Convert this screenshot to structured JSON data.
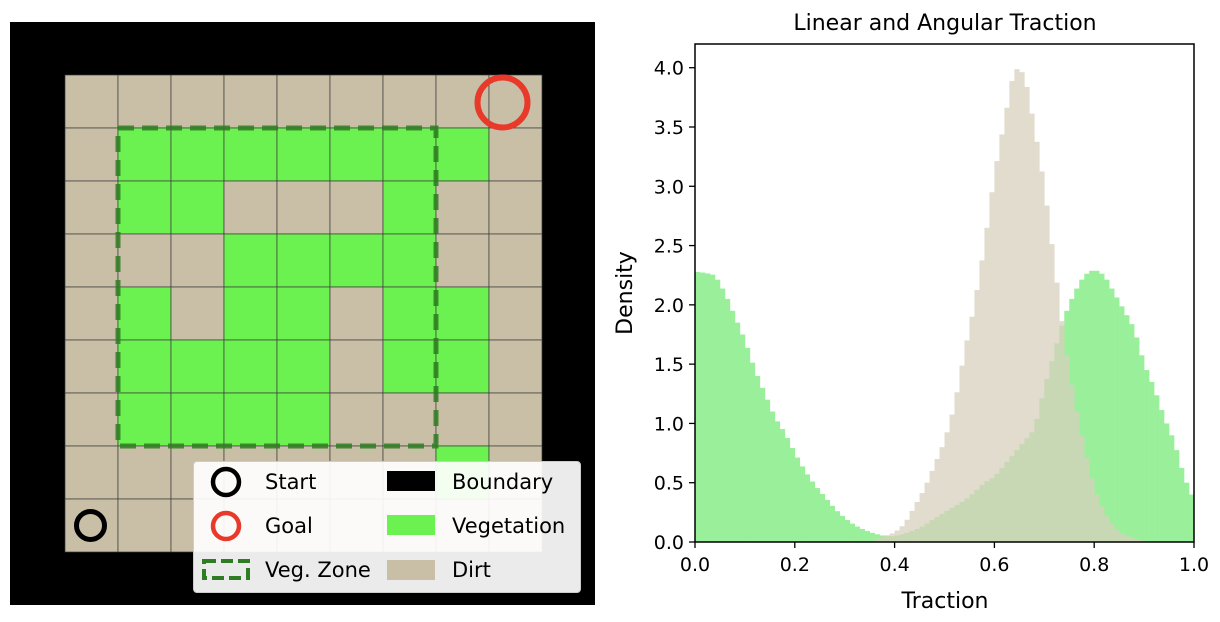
{
  "colors": {
    "boundary": "#000000",
    "dirt": "#c8bfa6",
    "vegetation": "#6cf250",
    "veg_zone": "#2e7d22",
    "goal": "#e8392a",
    "start": "#000000",
    "hist_vegetation": "#90ee90",
    "hist_dirt": "#d8d1bd"
  },
  "grid_map": {
    "rows": 9,
    "cols": 9,
    "cells": [
      "DDDDDDDDD",
      "DVVVVVVVD",
      "DVVDDDVDD",
      "DDDVVVVDD",
      "DVDVVDVVD",
      "DVVVVDVVD",
      "DVVVVDDDD",
      "DDDDDDDVD",
      "DDDDDDDDD"
    ],
    "start_cell": [
      8,
      0
    ],
    "goal_cell": [
      0,
      8
    ],
    "veg_zone": {
      "row_start": 1,
      "row_end": 7,
      "col_start": 1,
      "col_end": 7
    }
  },
  "legend": {
    "items": [
      {
        "label": "Start",
        "icon": "black-ring"
      },
      {
        "label": "Boundary",
        "icon": "black-patch"
      },
      {
        "label": "Goal",
        "icon": "red-ring"
      },
      {
        "label": "Vegetation",
        "icon": "green-patch"
      },
      {
        "label": "Veg. Zone",
        "icon": "dashed-green-box"
      },
      {
        "label": "Dirt",
        "icon": "tan-patch"
      }
    ]
  },
  "chart_data": {
    "type": "histogram",
    "title": "Linear and Angular Traction",
    "xlabel": "Traction",
    "ylabel": "Density",
    "xlim": [
      0.0,
      1.0
    ],
    "ylim": [
      0.0,
      4.2
    ],
    "xticks": [
      "0.0",
      "0.2",
      "0.4",
      "0.6",
      "0.8",
      "1.0"
    ],
    "yticks": [
      "0.0",
      "0.5",
      "1.0",
      "1.5",
      "2.0",
      "2.5",
      "3.0",
      "3.5",
      "4.0"
    ],
    "bin_width": 0.01,
    "series": [
      {
        "name": "Vegetation",
        "color": "#90ee90",
        "opacity": 0.9,
        "curve_points": [
          [
            0.0,
            2.28
          ],
          [
            0.02,
            2.27
          ],
          [
            0.04,
            2.25
          ],
          [
            0.06,
            2.1
          ],
          [
            0.08,
            1.9
          ],
          [
            0.1,
            1.7
          ],
          [
            0.12,
            1.45
          ],
          [
            0.14,
            1.25
          ],
          [
            0.16,
            1.05
          ],
          [
            0.18,
            0.92
          ],
          [
            0.2,
            0.75
          ],
          [
            0.22,
            0.6
          ],
          [
            0.24,
            0.48
          ],
          [
            0.26,
            0.38
          ],
          [
            0.28,
            0.28
          ],
          [
            0.3,
            0.2
          ],
          [
            0.32,
            0.14
          ],
          [
            0.34,
            0.1
          ],
          [
            0.36,
            0.07
          ],
          [
            0.38,
            0.05
          ],
          [
            0.4,
            0.05
          ],
          [
            0.42,
            0.07
          ],
          [
            0.44,
            0.1
          ],
          [
            0.46,
            0.14
          ],
          [
            0.48,
            0.2
          ],
          [
            0.5,
            0.25
          ],
          [
            0.52,
            0.3
          ],
          [
            0.54,
            0.35
          ],
          [
            0.56,
            0.42
          ],
          [
            0.58,
            0.5
          ],
          [
            0.6,
            0.55
          ],
          [
            0.62,
            0.65
          ],
          [
            0.64,
            0.75
          ],
          [
            0.66,
            0.85
          ],
          [
            0.68,
            0.95
          ],
          [
            0.7,
            1.3
          ],
          [
            0.72,
            1.6
          ],
          [
            0.74,
            1.9
          ],
          [
            0.76,
            2.1
          ],
          [
            0.78,
            2.25
          ],
          [
            0.8,
            2.3
          ],
          [
            0.82,
            2.25
          ],
          [
            0.84,
            2.1
          ],
          [
            0.86,
            1.95
          ],
          [
            0.88,
            1.8
          ],
          [
            0.9,
            1.5
          ],
          [
            0.92,
            1.3
          ],
          [
            0.94,
            1.05
          ],
          [
            0.96,
            0.85
          ],
          [
            0.98,
            0.55
          ],
          [
            1.0,
            0.35
          ]
        ]
      },
      {
        "name": "Dirt",
        "color": "#d8d1bd",
        "opacity": 0.75,
        "curve_points": [
          [
            0.36,
            0.02
          ],
          [
            0.38,
            0.05
          ],
          [
            0.4,
            0.08
          ],
          [
            0.42,
            0.15
          ],
          [
            0.44,
            0.3
          ],
          [
            0.46,
            0.45
          ],
          [
            0.48,
            0.65
          ],
          [
            0.5,
            0.85
          ],
          [
            0.52,
            1.15
          ],
          [
            0.54,
            1.6
          ],
          [
            0.56,
            2.0
          ],
          [
            0.58,
            2.5
          ],
          [
            0.6,
            3.1
          ],
          [
            0.62,
            3.55
          ],
          [
            0.64,
            4.0
          ],
          [
            0.66,
            3.95
          ],
          [
            0.68,
            3.5
          ],
          [
            0.7,
            3.0
          ],
          [
            0.72,
            2.35
          ],
          [
            0.74,
            1.7
          ],
          [
            0.76,
            1.2
          ],
          [
            0.78,
            0.8
          ],
          [
            0.8,
            0.45
          ],
          [
            0.82,
            0.25
          ],
          [
            0.84,
            0.12
          ],
          [
            0.86,
            0.06
          ],
          [
            0.88,
            0.03
          ],
          [
            0.9,
            0.01
          ]
        ]
      }
    ]
  }
}
